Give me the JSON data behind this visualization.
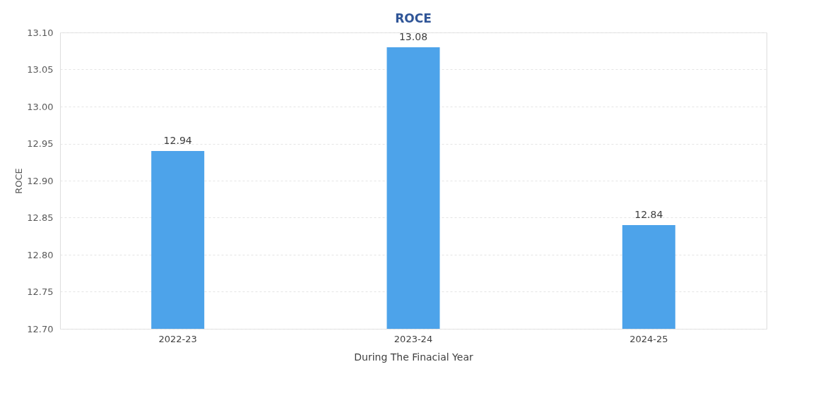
{
  "chart_data": {
    "type": "bar",
    "title": "ROCE",
    "xlabel": "During The Finacial Year",
    "ylabel": "ROCE",
    "categories": [
      "2022-23",
      "2023-24",
      "2024-25"
    ],
    "values": [
      12.94,
      13.08,
      12.84
    ],
    "color": "#4da3ea",
    "ylim": [
      12.7,
      13.1
    ],
    "yticks": [
      {
        "value": 12.7,
        "label": "12.70"
      },
      {
        "value": 12.75,
        "label": "12.75"
      },
      {
        "value": 12.8,
        "label": "12.80"
      },
      {
        "value": 12.85,
        "label": "12.85"
      },
      {
        "value": 12.9,
        "label": "12.90"
      },
      {
        "value": 12.95,
        "label": "12.95"
      },
      {
        "value": 13.0,
        "label": "13.00"
      },
      {
        "value": 13.05,
        "label": "13.05"
      },
      {
        "value": 13.1,
        "label": "13.10"
      }
    ],
    "grid": "y",
    "data_labels": true
  }
}
